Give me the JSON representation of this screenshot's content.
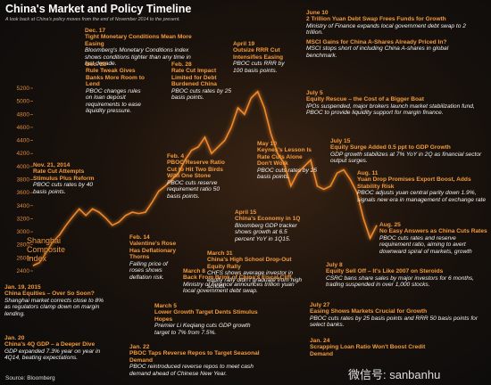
{
  "header": {
    "title": "China's Market and Policy Timeline",
    "subtitle": "A look back at China's policy moves from the end of November 2014 to the present."
  },
  "chart_data": {
    "type": "line",
    "series_label": "Shanghai Composite Index",
    "color": "#f0882a",
    "values": [
      2480,
      2530,
      2680,
      2850,
      2950,
      3100,
      3230,
      3350,
      3250,
      3350,
      3300,
      3210,
      3100,
      3150,
      3250,
      3300,
      3280,
      3300,
      3450,
      3620,
      3700,
      3800,
      3900,
      4100,
      4250,
      4300,
      4450,
      4200,
      4300,
      4400,
      4600,
      4900,
      4800,
      5050,
      5150,
      4900,
      4500,
      4200,
      4050,
      3700,
      3900,
      4000,
      4100,
      3700,
      3650,
      3700,
      3900,
      3950,
      3800,
      3600,
      3200,
      2900,
      3100
    ],
    "ylim": [
      2400,
      5200
    ],
    "yticks": [
      2400,
      2600,
      2800,
      3000,
      3200,
      3400,
      3600,
      3800,
      4000,
      4200,
      4400,
      4600,
      4800,
      5000,
      5200
    ],
    "tick_color": "#e08a3c"
  },
  "annotations": [
    {
      "date": "Dec. 17",
      "title": "Tight Monetary Conditions Mean More Easing",
      "text": "Bloomberg's Monetary Conditions index shows conditions tighter than any time in last decade."
    },
    {
      "date": "Dec. 28",
      "title": "Rule Tweak Gives Banks More Room to Lend",
      "text": "PBOC changes rules on loan deposit requirements to ease liquidity pressure."
    },
    {
      "date": "Feb. 28",
      "title": "Rate Cut Impact Limited for Debt Burdened China",
      "text": "PBOC cuts rates by 25 basis points."
    },
    {
      "date": "April 19",
      "title": "Outsize RRR Cut Intensifies Easing",
      "text": "PBOC cuts RRR by 100 basis points."
    },
    {
      "date": "June 10",
      "title": "2 Trillion Yuan Debt Swap Frees Funds for Growth",
      "text": "Ministry of Finance expands local government debt swap to 2 trillion."
    },
    {
      "title": "MSCI Gains for China A-Shares Already Priced In?",
      "text": "MSCI stops short of including China A-shares in global benchmark."
    },
    {
      "date": "July 5",
      "title": "Equity Rescue – the Cost of a Bigger Boat",
      "text": "IPOs suspended, major brokers launch market stabilization fund, PBOC to provide liquidity support for margin finance."
    },
    {
      "date": "July 15",
      "title": "Equity Surge Added 0.5 ppt to GDP Growth",
      "text": "GDP growth stabilizes at 7% YoY in 2Q as financial sector output surges."
    },
    {
      "date": "Aug. 11",
      "title": "Yuan Drop Promises Export Boost, Adds Stability Risk",
      "text": "PBOC adjusts yuan central parity down 1.9%, signals new era in management of exchange rate"
    },
    {
      "date": "Aug. 25",
      "title": "No Easy Answers as China Cuts Rates",
      "text": "PBOC cuts rates and reserve requirement ratio, aiming to avert downward spiral of markets, growth"
    },
    {
      "date": "Nov. 21, 2014",
      "title": "Rate Cut Attempts Stimulus Plus Reform",
      "text": "PBOC cuts rates by 40 basis points."
    },
    {
      "date": "Feb. 4",
      "title": "PBOC Reserve Ratio Cut to Hit Two Birds With One Stone",
      "text": "PBOC cuts reserve requirement ratio 50 basis points."
    },
    {
      "date": "May 10",
      "title": "Keynes's Lesson Is Rate Cuts Alone Don't Work",
      "text": "PBOC cuts rates by 25 basis points."
    },
    {
      "date": "April 15",
      "title": "China's Economy in 1Q",
      "text": "Bloomberg GDP tracker shows growth at 6.5 percent YoY in 1Q15."
    },
    {
      "date": "Feb. 14",
      "title": "Valentine's Rose Has Deflationary Thorns",
      "text": "Falling price of roses shows deflation risk."
    },
    {
      "date": "March 31",
      "title": "China's High School Drop-Out Equity Rally",
      "text": "CHFS shows average investor in equity rally didn't graduate from high school."
    },
    {
      "date": "March 8",
      "title": "Back From Brink of China's Fiscal Cliff",
      "text": "Ministry of Finance announces trillion yuan local government debt swap."
    },
    {
      "date": "March 5",
      "title": "Lower Growth Target Dents Stimulus Hopes",
      "text": "Premier Li Keqiang cuts GDP growth target to 7% from 7.5%."
    },
    {
      "date": "Jan. 19, 2015",
      "title": "China Equities – Over So Soon?",
      "text": "Shanghai market corrects close to 8% as regulators clamp down on margin lending."
    },
    {
      "date": "Jan. 20",
      "title": "China's 4Q GDP – a Deeper Dive",
      "text": "GDP expanded 7.3% year on year in 4Q14, beating expectations."
    },
    {
      "date": "Jan. 22",
      "title": "PBOC Taps Reverse Repos to Target Seasonal Demand",
      "text": "PBOC reintroduced reverse repos to meet cash demand ahead of Chinese New Year."
    },
    {
      "date": "July 8",
      "title": "Equity Sell Off – It's Like 2007 on Steroids",
      "text": "CSRC bans share sales by major investors for 6 months, trading suspended in over 1,000 stocks."
    },
    {
      "date": "July 27",
      "title": "Easing Shows Markets Crucial for Growth",
      "text": "PBOC cuts rates by 25 basis points and RRR 50 basis points for select banks."
    },
    {
      "date": "Jan. 24",
      "title": "Scrapping Loan Ratio Won't Boost Credit Demand"
    }
  ],
  "footer": {
    "source": "Source: Bloomberg",
    "watermark": "微信号: sanbanhu"
  }
}
